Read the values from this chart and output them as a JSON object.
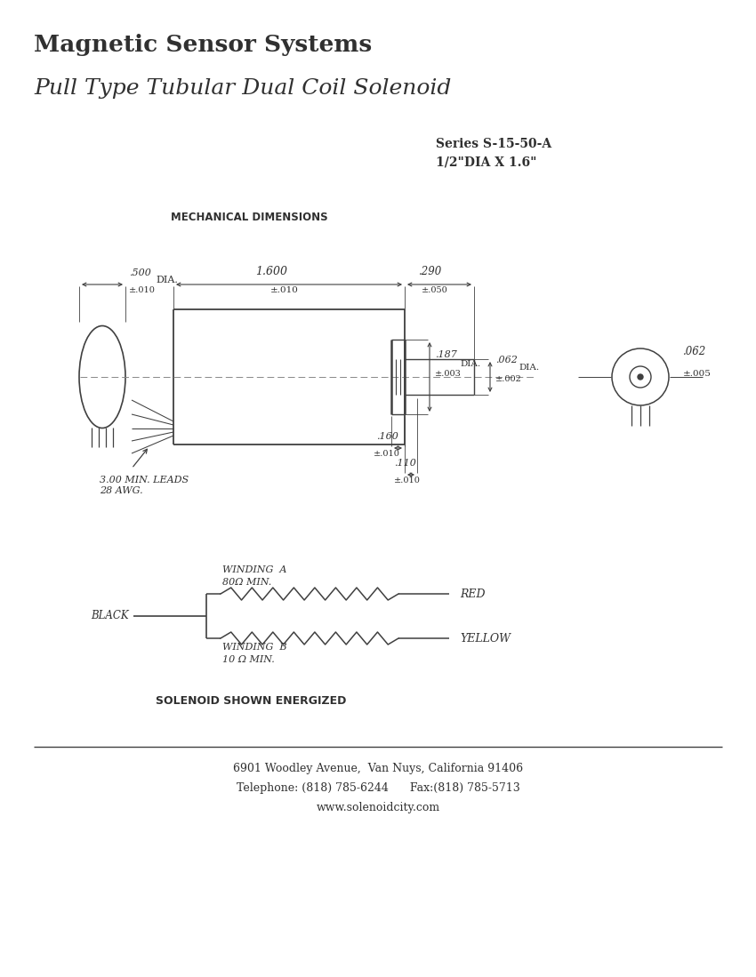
{
  "title1": "Magnetic Sensor Systems",
  "title2": "Pull Type Tubular Dual Coil Solenoid",
  "series_label": "Series S-15-50-A",
  "size_label": "1/2\"DIA X 1.6\"",
  "mech_dim_label": "MECHANICAL DIMENSIONS",
  "dim_500": ".500",
  "dim_500b": "±.010",
  "dim_500c": "DIA.",
  "dim_1600": "1.600",
  "dim_1600b": "±.010",
  "dim_290": ".290",
  "dim_290b": "±.050",
  "dim_062a": ".062",
  "dim_062b": "±.002",
  "dim_062c": "DIA.",
  "dim_062r": ".062",
  "dim_062rb": "±.005",
  "dim_160": ".160",
  "dim_160b": "±.010",
  "dim_187": ".187",
  "dim_187b": "±.003",
  "dim_187c": "DIA.",
  "dim_110": ".110",
  "dim_110b": "±.010",
  "leads_label": "3.00 MIN. LEADS\n28 AWG.",
  "winding_a": "WINDING  A",
  "winding_a_val": "80Ω MIN.",
  "winding_b": "WINDING  B",
  "winding_b_val": "10 Ω MIN.",
  "black_label": "BLACK",
  "red_label": "RED",
  "yellow_label": "YELLOW",
  "energized_label": "SOLENOID SHOWN ENERGIZED",
  "address": "6901 Woodley Avenue,  Van Nuys, California 91406",
  "phone": "Telephone: (818) 785-6244      Fax:(818) 785-5713",
  "website": "www.solenoidcity.com",
  "bg_color": "#ffffff",
  "line_color": "#404040",
  "text_color": "#303030"
}
